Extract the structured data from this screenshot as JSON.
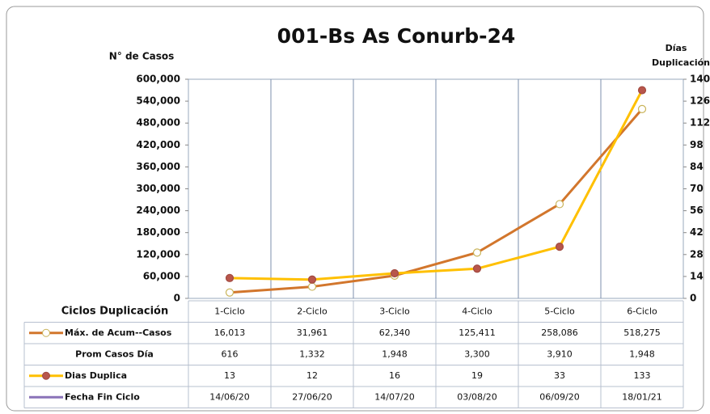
{
  "chart_data": {
    "type": "line",
    "title": "001-Bs As Conurb-24",
    "y_label": "N° de Casos",
    "y2_label": [
      "Días",
      "Duplicación"
    ],
    "category_label": "Ciclos Duplicación",
    "categories": [
      "1-Ciclo",
      "2-Ciclo",
      "3-Ciclo",
      "4-Ciclo",
      "5-Ciclo",
      "6-Ciclo"
    ],
    "series": [
      {
        "name": "Máx. de Acum--Casos",
        "color": "#d2762c",
        "marker_color": "#ffffff",
        "marker_edge": "#c9b45a",
        "values": [
          16013,
          31961,
          62340,
          125411,
          258086,
          518275
        ],
        "value_labels": [
          "16,013",
          "31,961",
          "62,340",
          "125,411",
          "258,086",
          "518,275"
        ]
      },
      {
        "name": "Prom Casos Día",
        "values": [
          616,
          1332,
          1948,
          3300,
          3910,
          1948
        ],
        "value_labels": [
          "616",
          "1,332",
          "1,948",
          "3,300",
          "3,910",
          "1,948"
        ]
      },
      {
        "name": "Dias Duplica",
        "color": "#ffc000",
        "marker_color": "#b8564c",
        "marker_edge": "#a24a40",
        "axis": "y2",
        "values": [
          13,
          12,
          16,
          19,
          33,
          133
        ]
      },
      {
        "name": "Fecha Fin Ciclo",
        "color": "#8a72b8",
        "values": [
          "14/06/20",
          "27/06/20",
          "14/07/20",
          "03/08/20",
          "06/09/20",
          "18/01/21"
        ]
      }
    ],
    "ylim": [
      0,
      600000
    ],
    "yticks": [
      0,
      {
        "value": 60000,
        "label": "60,000"
      },
      {
        "value": 120000,
        "label": "120,000"
      },
      {
        "value": 180000,
        "label": "180,000"
      },
      {
        "value": 240000,
        "label": "240,000"
      },
      {
        "value": 300000,
        "label": "300,000"
      },
      {
        "value": 360000,
        "label": "360,000"
      },
      {
        "value": 420000,
        "label": "420,000"
      },
      {
        "value": 480000,
        "label": "480,000"
      },
      {
        "value": 540000,
        "label": "540,000"
      },
      {
        "value": 600000,
        "label": "600,000"
      }
    ],
    "y2lim": [
      0,
      140
    ],
    "y2ticks": [
      0,
      14,
      28,
      42,
      56,
      70,
      84,
      98,
      112,
      126,
      140
    ],
    "grid": "x"
  }
}
